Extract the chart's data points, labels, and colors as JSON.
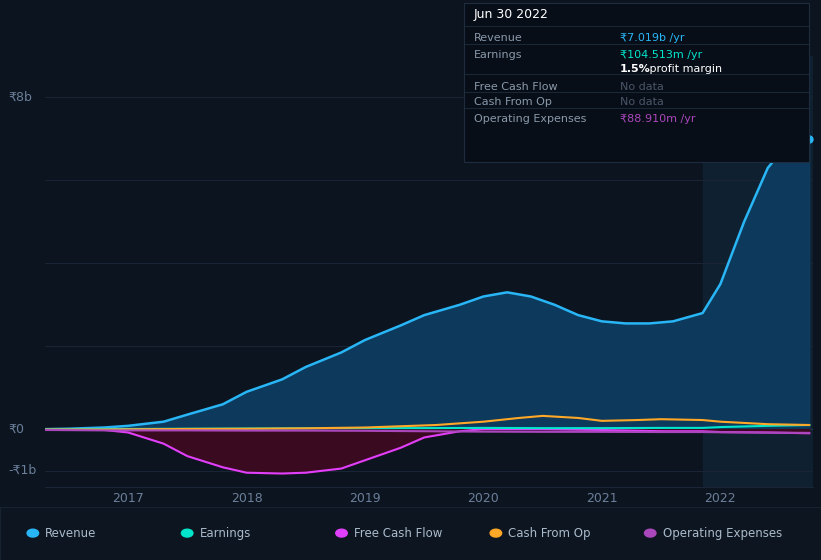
{
  "bg_color": "#0c1420",
  "chart_bg": "#0c1420",
  "highlight_bg": "#0f2030",
  "grid_color": "#1a2535",
  "ylim": [
    -1400000000.0,
    9000000000.0
  ],
  "ylabel_left_top": "₹8b",
  "ylabel_left_zero": "₹0",
  "ylabel_left_neg": "-₹1b",
  "y_top_val": 8000000000.0,
  "y_zero_val": 0,
  "y_neg_val": -1000000000.0,
  "highlight_x_start": 2021.85,
  "xlim": [
    2016.3,
    2022.78
  ],
  "xticks": [
    2017,
    2018,
    2019,
    2020,
    2021,
    2022
  ],
  "xtick_labels": [
    "2017",
    "2018",
    "2019",
    "2020",
    "2021",
    "2022"
  ],
  "series": {
    "revenue": {
      "color": "#29b6f6",
      "fill_color": "#0d3a5c",
      "label": "Revenue",
      "x": [
        2016.3,
        2016.5,
        2016.8,
        2017.0,
        2017.3,
        2017.5,
        2017.8,
        2018.0,
        2018.3,
        2018.5,
        2018.8,
        2019.0,
        2019.3,
        2019.5,
        2019.8,
        2020.0,
        2020.2,
        2020.4,
        2020.6,
        2020.8,
        2021.0,
        2021.2,
        2021.4,
        2021.6,
        2021.85,
        2022.0,
        2022.2,
        2022.4,
        2022.6,
        2022.75
      ],
      "y": [
        0,
        10000000.0,
        40000000.0,
        80000000.0,
        180000000.0,
        350000000.0,
        600000000.0,
        900000000.0,
        1200000000.0,
        1500000000.0,
        1850000000.0,
        2150000000.0,
        2500000000.0,
        2750000000.0,
        3000000000.0,
        3200000000.0,
        3300000000.0,
        3200000000.0,
        3000000000.0,
        2750000000.0,
        2600000000.0,
        2550000000.0,
        2550000000.0,
        2600000000.0,
        2800000000.0,
        3500000000.0,
        5000000000.0,
        6300000000.0,
        7000000000.0,
        7000000000.0
      ]
    },
    "earnings": {
      "color": "#00e5cc",
      "label": "Earnings",
      "x": [
        2016.3,
        2016.8,
        2017.0,
        2017.5,
        2018.0,
        2018.5,
        2019.0,
        2019.5,
        2020.0,
        2020.5,
        2021.0,
        2021.5,
        2021.85,
        2022.0,
        2022.4,
        2022.75
      ],
      "y": [
        0,
        0,
        5000000.0,
        10000000.0,
        15000000.0,
        20000000.0,
        25000000.0,
        25000000.0,
        30000000.0,
        25000000.0,
        25000000.0,
        30000000.0,
        30000000.0,
        50000000.0,
        80000000.0,
        100000000.0
      ]
    },
    "free_cash_flow": {
      "color": "#e040fb",
      "fill_color": "#3a0a20",
      "label": "Free Cash Flow",
      "x": [
        2016.3,
        2016.5,
        2016.8,
        2017.0,
        2017.3,
        2017.5,
        2017.8,
        2018.0,
        2018.3,
        2018.5,
        2018.8,
        2019.0,
        2019.3,
        2019.5,
        2019.8,
        2020.0,
        2020.5,
        2021.0,
        2021.5,
        2021.85,
        2022.0,
        2022.4,
        2022.75
      ],
      "y": [
        0,
        0,
        -20000000.0,
        -80000000.0,
        -350000000.0,
        -650000000.0,
        -920000000.0,
        -1050000000.0,
        -1070000000.0,
        -1050000000.0,
        -950000000.0,
        -750000000.0,
        -450000000.0,
        -200000000.0,
        -50000000.0,
        0.0,
        0.0,
        -20000000.0,
        -50000000.0,
        -50000000.0,
        -70000000.0,
        -80000000.0,
        -100000000.0
      ]
    },
    "cash_from_op": {
      "color": "#ffa726",
      "label": "Cash From Op",
      "x": [
        2016.3,
        2016.8,
        2017.0,
        2017.5,
        2018.0,
        2018.5,
        2019.0,
        2019.3,
        2019.6,
        2020.0,
        2020.3,
        2020.5,
        2020.8,
        2021.0,
        2021.3,
        2021.5,
        2021.85,
        2022.0,
        2022.4,
        2022.75
      ],
      "y": [
        -10000000.0,
        -10000000.0,
        -5000000.0,
        5000000.0,
        10000000.0,
        20000000.0,
        40000000.0,
        70000000.0,
        100000000.0,
        180000000.0,
        270000000.0,
        320000000.0,
        270000000.0,
        200000000.0,
        220000000.0,
        240000000.0,
        220000000.0,
        180000000.0,
        120000000.0,
        100000000.0
      ]
    },
    "operating_expenses": {
      "color": "#ab47bc",
      "label": "Operating Expenses",
      "x": [
        2016.3,
        2016.8,
        2017.0,
        2017.5,
        2018.0,
        2018.5,
        2019.0,
        2019.5,
        2020.0,
        2020.5,
        2021.0,
        2021.5,
        2021.85,
        2022.0,
        2022.4,
        2022.75
      ],
      "y": [
        -20000000.0,
        -30000000.0,
        -30000000.0,
        -30000000.0,
        -35000000.0,
        -35000000.0,
        -40000000.0,
        -50000000.0,
        -60000000.0,
        -65000000.0,
        -65000000.0,
        -70000000.0,
        -70000000.0,
        -75000000.0,
        -85000000.0,
        -90000000.0
      ]
    }
  },
  "info_box": {
    "title": "Jun 30 2022",
    "title_color": "#ffffff",
    "bg_color": "#080e18",
    "border_color": "#1e2d3d",
    "label_color": "#8899aa",
    "dimmed_color": "#4a5568",
    "rows": [
      {
        "label": "Revenue",
        "value": "₹7.019b /yr",
        "value_color": "#29b6f6"
      },
      {
        "label": "Earnings",
        "value": "₹104.513m /yr",
        "value_color": "#00e5cc"
      },
      {
        "label": "",
        "value": "1.5% profit margin",
        "value_color": "#ffffff",
        "bold": true
      },
      {
        "label": "Free Cash Flow",
        "value": "No data",
        "value_color": "#4a5568"
      },
      {
        "label": "Cash From Op",
        "value": "No data",
        "value_color": "#4a5568"
      },
      {
        "label": "Operating Expenses",
        "value": "₹88.910m /yr",
        "value_color": "#ab47bc"
      }
    ]
  },
  "legend": [
    {
      "label": "Revenue",
      "color": "#29b6f6"
    },
    {
      "label": "Earnings",
      "color": "#00e5cc"
    },
    {
      "label": "Free Cash Flow",
      "color": "#e040fb"
    },
    {
      "label": "Cash From Op",
      "color": "#ffa726"
    },
    {
      "label": "Operating Expenses",
      "color": "#ab47bc"
    }
  ]
}
